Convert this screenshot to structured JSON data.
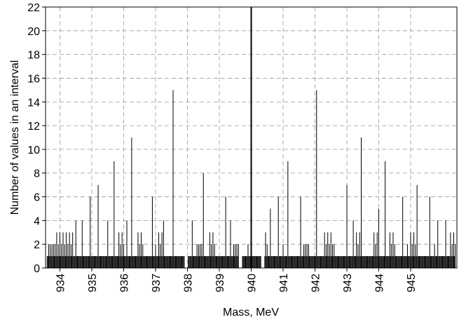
{
  "chart_data": {
    "type": "bar",
    "xlabel": "Mass, MeV",
    "ylabel": "Number of values in an interval",
    "xlim": [
      933.55,
      946.45
    ],
    "ylim": [
      0,
      22
    ],
    "grid": true,
    "x_ticks": [
      934,
      935,
      936,
      937,
      938,
      939,
      940,
      941,
      942,
      943,
      944,
      945
    ],
    "y_ticks": [
      0,
      2,
      4,
      6,
      8,
      10,
      12,
      14,
      16,
      18,
      20,
      22
    ],
    "bin_width": 0.025,
    "baseline_range": [
      933.6,
      946.4
    ],
    "baseline_value": 1,
    "baseline_gaps": [
      [
        937.9,
        938.0
      ],
      [
        939.6,
        939.7
      ],
      [
        940.3,
        940.4
      ]
    ],
    "spikes": [
      {
        "x": 937.55,
        "y": 15
      },
      {
        "x": 942.05,
        "y": 15
      },
      {
        "x": 936.25,
        "y": 11
      },
      {
        "x": 943.45,
        "y": 11
      },
      {
        "x": 935.7,
        "y": 9
      },
      {
        "x": 941.15,
        "y": 9
      },
      {
        "x": 944.2,
        "y": 9
      },
      {
        "x": 938.5,
        "y": 8
      },
      {
        "x": 935.2,
        "y": 7
      },
      {
        "x": 943.0,
        "y": 7
      },
      {
        "x": 945.2,
        "y": 7
      },
      {
        "x": 934.95,
        "y": 6
      },
      {
        "x": 936.9,
        "y": 6
      },
      {
        "x": 939.2,
        "y": 6
      },
      {
        "x": 940.85,
        "y": 6
      },
      {
        "x": 941.55,
        "y": 6
      },
      {
        "x": 944.75,
        "y": 6
      },
      {
        "x": 945.6,
        "y": 6
      },
      {
        "x": 940.6,
        "y": 5
      },
      {
        "x": 944.0,
        "y": 5
      },
      {
        "x": 934.5,
        "y": 4
      },
      {
        "x": 934.7,
        "y": 4
      },
      {
        "x": 935.5,
        "y": 4
      },
      {
        "x": 936.1,
        "y": 4
      },
      {
        "x": 937.25,
        "y": 4
      },
      {
        "x": 938.15,
        "y": 4
      },
      {
        "x": 939.35,
        "y": 4
      },
      {
        "x": 943.2,
        "y": 4
      },
      {
        "x": 945.85,
        "y": 4
      },
      {
        "x": 946.1,
        "y": 4
      },
      {
        "x": 939.9,
        "y": 2
      },
      {
        "x": 934.0,
        "y": 2
      },
      {
        "x": 936.55,
        "y": 2
      },
      {
        "x": 941.0,
        "y": 2
      },
      {
        "x": 942.6,
        "y": 2
      },
      {
        "x": 944.9,
        "y": 2
      },
      {
        "x": 945.75,
        "y": 2
      },
      {
        "x": 937.0,
        "y": 2
      }
    ],
    "clusters": [
      {
        "from": 933.65,
        "to": 933.9,
        "y": 2
      },
      {
        "from": 933.9,
        "to": 934.4,
        "y": 3
      },
      {
        "from": 935.85,
        "to": 936.0,
        "y": 3
      },
      {
        "from": 936.45,
        "to": 936.6,
        "y": 3
      },
      {
        "from": 937.1,
        "to": 937.25,
        "y": 3
      },
      {
        "from": 938.3,
        "to": 938.45,
        "y": 2
      },
      {
        "from": 938.7,
        "to": 938.85,
        "y": 3
      },
      {
        "from": 939.45,
        "to": 939.6,
        "y": 2
      },
      {
        "from": 940.45,
        "to": 940.55,
        "y": 3
      },
      {
        "from": 941.65,
        "to": 941.8,
        "y": 2
      },
      {
        "from": 942.3,
        "to": 942.55,
        "y": 3
      },
      {
        "from": 943.3,
        "to": 943.45,
        "y": 3
      },
      {
        "from": 943.85,
        "to": 943.95,
        "y": 3
      },
      {
        "from": 944.35,
        "to": 944.5,
        "y": 3
      },
      {
        "from": 945.0,
        "to": 945.15,
        "y": 3
      },
      {
        "from": 946.25,
        "to": 946.4,
        "y": 3
      }
    ],
    "center_line_x": 940.0,
    "center_line_top": 22
  }
}
